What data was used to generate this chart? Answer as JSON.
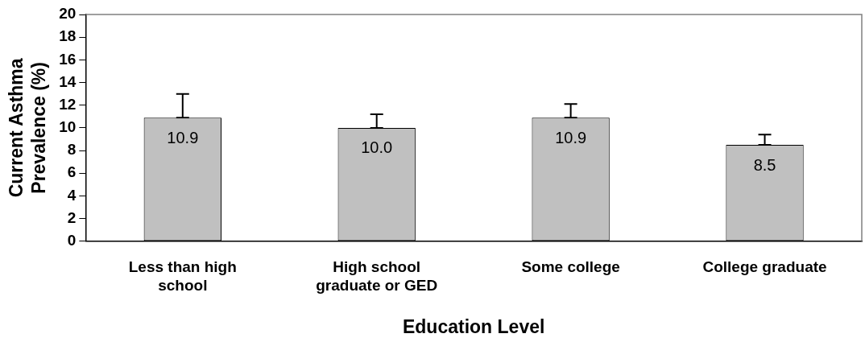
{
  "chart_data": {
    "type": "bar",
    "categories": [
      "Less than high school",
      "High school graduate or GED",
      "Some college",
      "College graduate"
    ],
    "values": [
      10.9,
      10.0,
      10.9,
      8.5
    ],
    "errors": [
      [
        10.9,
        13.0
      ],
      [
        10.0,
        11.2
      ],
      [
        10.9,
        12.1
      ],
      [
        8.5,
        9.4
      ]
    ],
    "color": "#c0c0c0",
    "xlabel": "Education Level",
    "ylabel": "Current Asthma Prevalence (%)",
    "ylim": [
      0,
      20
    ],
    "yticks": [
      0,
      2,
      4,
      6,
      8,
      10,
      12,
      14,
      16,
      18,
      20
    ],
    "value_labels": [
      "10.9",
      "10.0",
      "10.9",
      "8.5"
    ],
    "grid": false,
    "legend": false
  }
}
